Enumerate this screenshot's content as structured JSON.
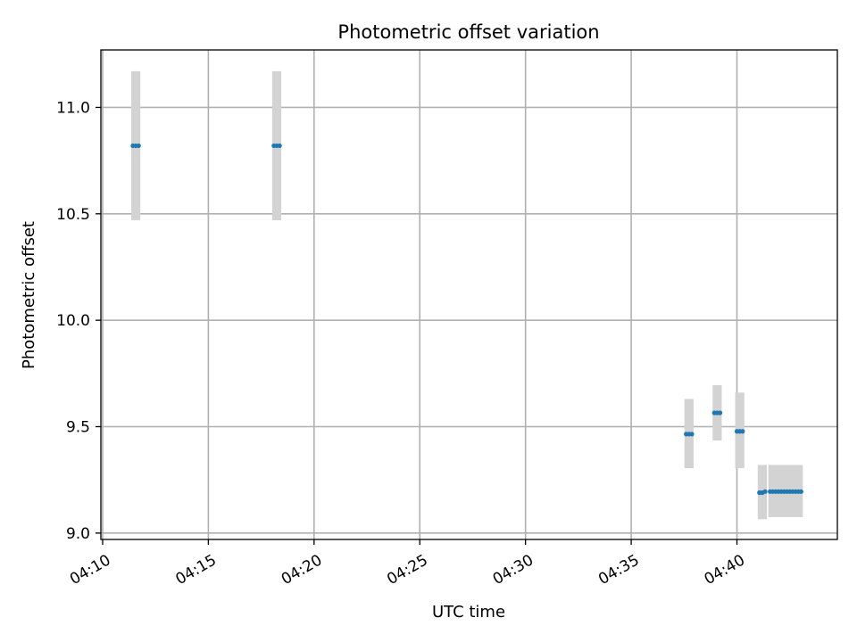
{
  "chart_data": {
    "type": "scatter",
    "title": "Photometric offset variation",
    "xlabel": "UTC time",
    "ylabel": "Photometric offset",
    "x_axis_type": "time",
    "xlim": [
      "04:09:55",
      "04:44:45"
    ],
    "ylim": [
      8.97,
      11.27
    ],
    "x_ticks": [
      "04:10",
      "04:15",
      "04:20",
      "04:25",
      "04:30",
      "04:35",
      "04:40"
    ],
    "y_ticks": [
      "9.0",
      "9.5",
      "10.0",
      "10.5",
      "11.0"
    ],
    "y_tick_values": [
      9.0,
      9.5,
      10.0,
      10.5,
      11.0
    ],
    "grid": true,
    "legend": "none",
    "colors": {
      "point": "#1f77b4",
      "error_band": "#d3d3d3"
    },
    "series": [
      {
        "points": [
          {
            "x": "04:11:26",
            "y": 10.82
          },
          {
            "x": "04:11:34",
            "y": 10.82
          },
          {
            "x": "04:11:42",
            "y": 10.82
          },
          {
            "x": "04:18:06",
            "y": 10.82
          },
          {
            "x": "04:18:14",
            "y": 10.82
          },
          {
            "x": "04:18:22",
            "y": 10.82
          },
          {
            "x": "04:37:36",
            "y": 9.465
          },
          {
            "x": "04:37:44",
            "y": 9.465
          },
          {
            "x": "04:37:52",
            "y": 9.465
          },
          {
            "x": "04:38:56",
            "y": 9.565
          },
          {
            "x": "04:39:04",
            "y": 9.565
          },
          {
            "x": "04:39:12",
            "y": 9.565
          },
          {
            "x": "04:40:00",
            "y": 9.478
          },
          {
            "x": "04:40:08",
            "y": 9.478
          },
          {
            "x": "04:40:16",
            "y": 9.478
          },
          {
            "x": "04:41:04",
            "y": 9.19
          },
          {
            "x": "04:41:12",
            "y": 9.19
          },
          {
            "x": "04:41:20",
            "y": 9.195
          },
          {
            "x": "04:41:34",
            "y": 9.195
          },
          {
            "x": "04:41:42",
            "y": 9.195
          },
          {
            "x": "04:41:50",
            "y": 9.195
          },
          {
            "x": "04:41:58",
            "y": 9.195
          },
          {
            "x": "04:42:06",
            "y": 9.195
          },
          {
            "x": "04:42:14",
            "y": 9.195
          },
          {
            "x": "04:42:22",
            "y": 9.195
          },
          {
            "x": "04:42:30",
            "y": 9.195
          },
          {
            "x": "04:42:38",
            "y": 9.195
          },
          {
            "x": "04:42:46",
            "y": 9.195
          },
          {
            "x": "04:42:54",
            "y": 9.195
          },
          {
            "x": "04:43:02",
            "y": 9.195
          }
        ]
      }
    ],
    "error_bands": [
      {
        "x_start": "04:11:21",
        "x_end": "04:11:47",
        "y_low": 10.47,
        "y_high": 11.17
      },
      {
        "x_start": "04:18:01",
        "x_end": "04:18:27",
        "y_low": 10.47,
        "y_high": 11.17
      },
      {
        "x_start": "04:37:31",
        "x_end": "04:37:57",
        "y_low": 9.305,
        "y_high": 9.63
      },
      {
        "x_start": "04:38:51",
        "x_end": "04:39:17",
        "y_low": 9.435,
        "y_high": 9.695
      },
      {
        "x_start": "04:39:55",
        "x_end": "04:40:21",
        "y_low": 9.305,
        "y_high": 9.66
      },
      {
        "x_start": "04:40:59",
        "x_end": "04:41:25",
        "y_low": 9.065,
        "y_high": 9.32
      },
      {
        "x_start": "04:41:29",
        "x_end": "04:43:07",
        "y_low": 9.075,
        "y_high": 9.32
      }
    ]
  }
}
